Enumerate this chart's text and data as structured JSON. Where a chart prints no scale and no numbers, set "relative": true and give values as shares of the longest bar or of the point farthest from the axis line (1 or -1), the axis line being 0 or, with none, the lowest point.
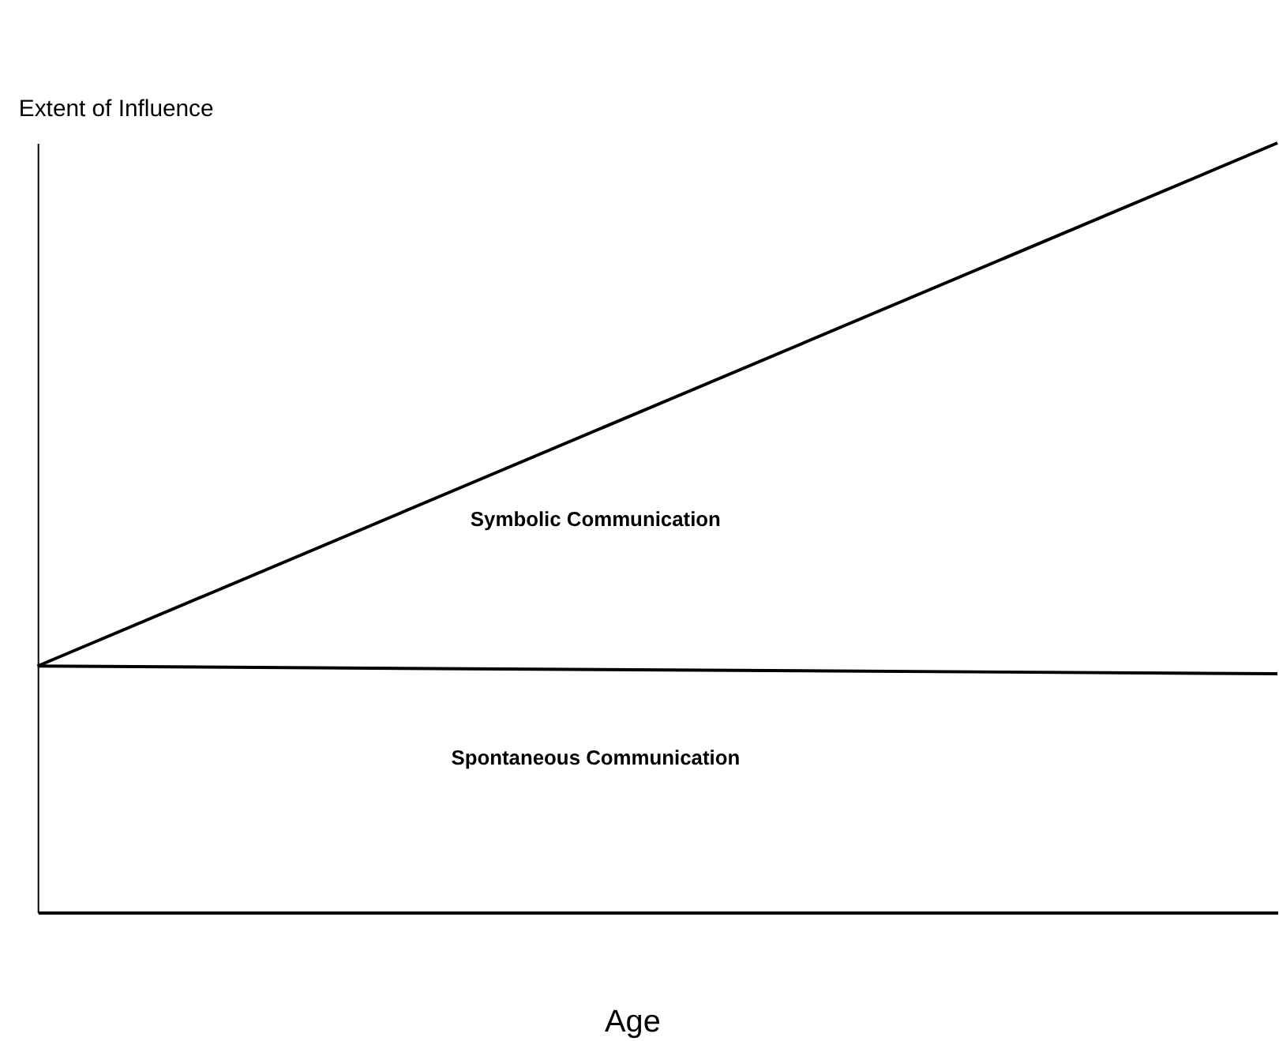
{
  "chart_data": {
    "type": "line",
    "relative": true,
    "categories": [
      null,
      null
    ],
    "ylabel": "Extent of Influence",
    "xlabel": "Age",
    "series": [
      {
        "color": "#000000",
        "values": [
          0.32,
          1
        ]
      },
      {
        "color": "#000000",
        "values": [
          0.32,
          0.31
        ]
      }
    ],
    "annotations": [
      "Symbolic Communication",
      "Spontaneous Communication"
    ]
  }
}
